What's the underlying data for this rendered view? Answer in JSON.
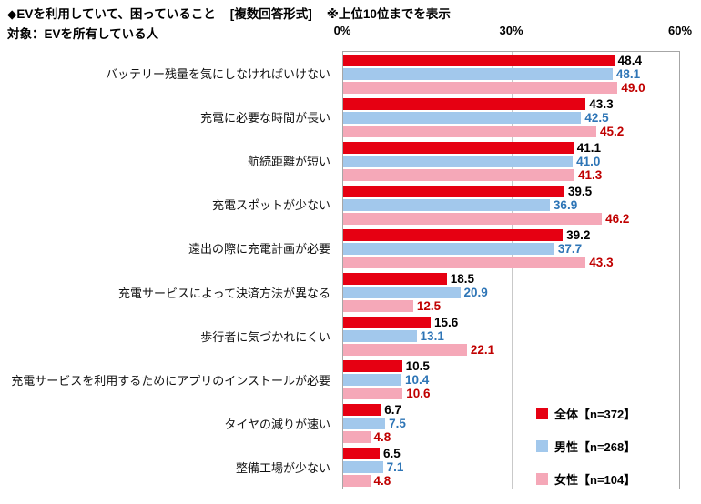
{
  "header": {
    "title": "◆EVを利用していて、困っていること",
    "format_note": "[複数回答形式]",
    "top_note": "※上位10位までを表示",
    "target": "対象：EVを所有している人"
  },
  "chart_data": {
    "type": "bar",
    "orientation": "horizontal",
    "title": "EVを利用していて、困っていること",
    "xlabel": "",
    "ylabel": "",
    "xlim": [
      0,
      60
    ],
    "xticks": [
      "0%",
      "30%",
      "60%"
    ],
    "grid": "vertical line at 30%",
    "legend_position": "inside-bottom-right",
    "categories": [
      "バッテリー残量を気にしなければいけない",
      "充電に必要な時間が長い",
      "航続距離が短い",
      "充電スポットが少ない",
      "遠出の際に充電計画が必要",
      "充電サービスによって決済方法が異なる",
      "歩行者に気づかれにくい",
      "充電サービスを利用するためにアプリのインストールが必要",
      "タイヤの減りが速い",
      "整備工場が少ない"
    ],
    "series": [
      {
        "key": "zentai",
        "name": "全体【n=372】",
        "color": "#e60012",
        "value_color": "#000000",
        "values": [
          48.4,
          43.3,
          41.1,
          39.5,
          39.2,
          18.5,
          15.6,
          10.5,
          6.7,
          6.5
        ]
      },
      {
        "key": "dansei",
        "name": "男性【n=268】",
        "color": "#a2c8ec",
        "value_color": "#2e75b6",
        "values": [
          48.1,
          42.5,
          41.0,
          36.9,
          37.7,
          20.9,
          13.1,
          10.4,
          7.5,
          7.1
        ]
      },
      {
        "key": "josei",
        "name": "女性【n=104】",
        "color": "#f5a8b8",
        "value_color": "#c00000",
        "values": [
          49.0,
          45.2,
          41.3,
          46.2,
          43.3,
          12.5,
          22.1,
          10.6,
          4.8,
          4.8
        ]
      }
    ]
  }
}
